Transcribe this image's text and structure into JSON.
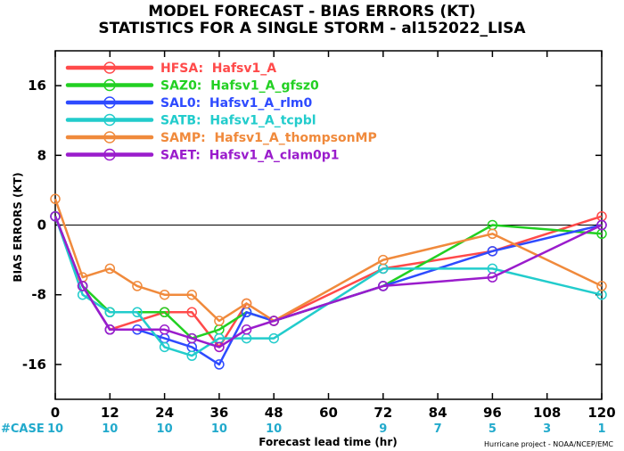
{
  "chart_data": {
    "type": "line",
    "title": "MODEL FORECAST - BIAS ERRORS (KT)",
    "subtitle": "STATISTICS FOR A SINGLE STORM - al152022_LISA",
    "xlabel": "Forecast lead time (hr)",
    "ylabel": "BIAS ERRORS (KT)",
    "xlim": [
      0,
      120
    ],
    "ylim": [
      -20,
      20
    ],
    "xticks": [
      0,
      12,
      24,
      36,
      48,
      60,
      72,
      84,
      96,
      108,
      120
    ],
    "yticks": [
      -16,
      -8,
      0,
      8,
      16
    ],
    "grid": false,
    "zero_line": true,
    "legend_position": "top-left",
    "series": [
      {
        "name": "HFSA:  Hafsv1_A",
        "color": "#ff4a4a",
        "x": [
          0,
          6,
          12,
          24,
          30,
          36,
          42,
          48,
          72,
          96,
          120
        ],
        "y": [
          1,
          -7,
          -12,
          -10,
          -10,
          -14,
          -9,
          -11,
          -5,
          -3,
          1
        ]
      },
      {
        "name": "SAZ0:  Hafsv1_A_gfsz0",
        "color": "#22d022",
        "x": [
          0,
          6,
          12,
          24,
          30,
          36,
          42,
          48,
          72,
          96,
          120
        ],
        "y": [
          1,
          -7,
          -10,
          -10,
          -13,
          -12,
          -10,
          -11,
          -7,
          0,
          -1
        ]
      },
      {
        "name": "SAL0:  Hafsv1_A_rlm0",
        "color": "#2e4bff",
        "x": [
          0,
          6,
          12,
          18,
          24,
          30,
          36,
          42,
          48,
          72,
          96,
          120
        ],
        "y": [
          1,
          -7,
          -12,
          -12,
          -13,
          -14,
          -16,
          -10,
          -11,
          -7,
          -3,
          0
        ]
      },
      {
        "name": "SATB:  Hafsv1_A_tcpbl",
        "color": "#22cccc",
        "x": [
          0,
          6,
          12,
          18,
          24,
          30,
          36,
          42,
          48,
          72,
          96,
          120
        ],
        "y": [
          1,
          -8,
          -10,
          -10,
          -14,
          -15,
          -13,
          -13,
          -13,
          -5,
          -5,
          -8
        ]
      },
      {
        "name": "SAMP:  Hafsv1_A_thompsonMP",
        "color": "#f08a3c",
        "x": [
          0,
          6,
          12,
          18,
          24,
          30,
          36,
          42,
          48,
          72,
          96,
          120
        ],
        "y": [
          3,
          -6,
          -5,
          -7,
          -8,
          -8,
          -11,
          -9,
          -11,
          -4,
          -1,
          -7
        ]
      },
      {
        "name": "SAET:  Hafsv1_A_clam0p1",
        "color": "#9a1ccc",
        "x": [
          0,
          6,
          12,
          24,
          30,
          36,
          42,
          48,
          72,
          96,
          120
        ],
        "y": [
          1,
          -7,
          -12,
          -12,
          -13,
          -14,
          -12,
          -11,
          -7,
          -6,
          0
        ]
      }
    ],
    "cases": {
      "label": "#CASE",
      "color": "#22aacc",
      "x": [
        0,
        12,
        24,
        36,
        48,
        72,
        84,
        96,
        108,
        120
      ],
      "values": [
        "10",
        "10",
        "10",
        "10",
        "10",
        "9",
        "7",
        "5",
        "3",
        "1"
      ]
    },
    "credit": "Hurricane project - NOAA/NCEP/EMC"
  }
}
